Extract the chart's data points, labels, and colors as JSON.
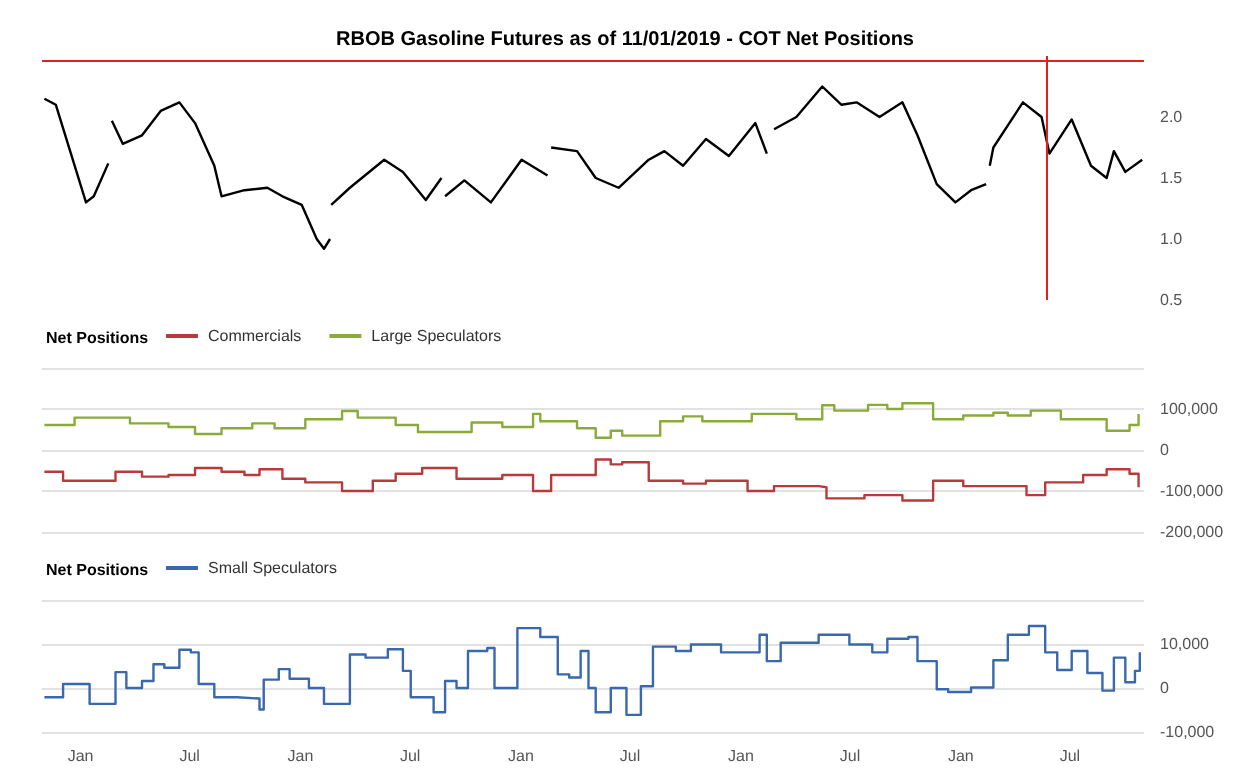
{
  "chart_data": [
    {
      "type": "line",
      "title": "RBOB Gasoline Futures as of 11/01/2019 - COT Net Positions",
      "xlim": [
        "2014-10-29",
        "2019-11-01"
      ],
      "ylim": [
        0.5,
        2.5
      ],
      "yticks": [
        0.5,
        {
          "value": 1,
          "label": "1.0"
        },
        1.5,
        {
          "value": 2,
          "label": "2.0"
        }
      ],
      "tick_labels": "y",
      "grid": false,
      "legend": false,
      "ref_lines": [
        {
          "axis": "x",
          "value": "2019-05-24",
          "color": "#e02020"
        },
        {
          "axis": "y",
          "value": 2.46,
          "color": "#e02020"
        }
      ],
      "series": [
        {
          "color": "#000000",
          "x": [
            "2014-11-02",
            "2014-11-21",
            "2014-12-16",
            "2015-01-10",
            "2015-01-23",
            "2015-02-16",
            "2015-02-19",
            "2015-02-22",
            "2015-03-12",
            "2015-04-13",
            "2015-05-14",
            "2015-06-14",
            "2015-07-10",
            "2015-08-11",
            "2015-08-23",
            "2015-09-30",
            "2015-11-07",
            "2015-12-02",
            "2016-01-03",
            "2016-01-28",
            "2016-02-09",
            "2016-02-19",
            "2016-02-20",
            "2016-02-21",
            "2016-03-23",
            "2016-05-19",
            "2016-06-19",
            "2016-07-27",
            "2016-08-22",
            "2016-08-25",
            "2016-08-28",
            "2016-09-29",
            "2016-11-12",
            "2017-01-02",
            "2017-02-14",
            "2017-02-17",
            "2017-02-20",
            "2017-04-04",
            "2017-05-05",
            "2017-06-12",
            "2017-08-01",
            "2017-08-27",
            "2017-09-27",
            "2017-11-04",
            "2017-12-12",
            "2018-01-25",
            "2018-02-13",
            "2018-02-19",
            "2018-02-25",
            "2018-04-03",
            "2018-05-16",
            "2018-06-17",
            "2018-07-12",
            "2018-08-19",
            "2018-09-26",
            "2018-10-21",
            "2018-11-22",
            "2018-12-23",
            "2019-01-18",
            "2019-02-12",
            "2019-02-15",
            "2019-02-18",
            "2019-02-24",
            "2019-04-14",
            "2019-05-15",
            "2019-05-28",
            "2019-07-04",
            "2019-08-05",
            "2019-08-31",
            "2019-09-12",
            "2019-10-01",
            "2019-10-29"
          ],
          "values": [
            2.15,
            2.1,
            1.7,
            1.3,
            1.35,
            1.62,
            null,
            1.97,
            1.78,
            1.85,
            2.05,
            2.12,
            1.95,
            1.6,
            1.35,
            1.4,
            1.42,
            1.35,
            1.28,
            1.0,
            0.92,
            1.0,
            null,
            1.28,
            1.42,
            1.65,
            1.55,
            1.32,
            1.5,
            null,
            1.35,
            1.48,
            1.3,
            1.65,
            1.52,
            null,
            1.75,
            1.72,
            1.5,
            1.42,
            1.65,
            1.72,
            1.6,
            1.82,
            1.68,
            1.95,
            1.7,
            null,
            1.9,
            2.0,
            2.25,
            2.1,
            2.12,
            2.0,
            2.12,
            1.85,
            1.45,
            1.3,
            1.4,
            1.45,
            null,
            1.6,
            1.75,
            2.12,
            2.0,
            1.7,
            1.98,
            1.6,
            1.5,
            1.72,
            1.55,
            1.65
          ]
        }
      ]
    },
    {
      "type": "step",
      "legend_title": "Net Positions",
      "xlim": [
        "2014-10-29",
        "2019-11-01"
      ],
      "ylim": [
        -200000,
        200000
      ],
      "yticks": [
        {
          "value": -200000,
          "label": "-200,000"
        },
        {
          "value": -100000,
          "label": "-100,000"
        },
        0,
        {
          "value": 100000,
          "label": "100,000"
        },
        {
          "value": 200000,
          "label": null
        }
      ],
      "tick_labels": "y",
      "grid": "y",
      "legend": "top left",
      "series": [
        {
          "name": "Commercials",
          "color": "#b83a3a",
          "x": [
            "2014-11-02",
            "2014-12-03",
            "2015-01-23",
            "2015-02-28",
            "2015-04-13",
            "2015-05-27",
            "2015-07-10",
            "2015-08-23",
            "2015-09-30",
            "2015-10-25",
            "2015-12-02",
            "2016-01-09",
            "2016-03-10",
            "2016-04-30",
            "2016-06-07",
            "2016-07-21",
            "2016-08-15",
            "2016-09-16",
            "2016-12-01",
            "2017-01-21",
            "2017-02-20",
            "2017-04-04",
            "2017-05-05",
            "2017-05-30",
            "2017-06-18",
            "2017-08-01",
            "2017-09-27",
            "2017-11-04",
            "2018-01-12",
            "2018-02-25",
            "2018-05-10",
            "2018-05-23",
            "2018-07-25",
            "2018-09-26",
            "2018-11-16",
            "2019-01-05",
            "2019-03-07",
            "2019-04-20",
            "2019-05-21",
            "2019-07-23",
            "2019-08-31",
            "2019-10-08",
            "2019-10-23"
          ],
          "values": [
            -53000,
            -75000,
            -75000,
            -53000,
            -65000,
            -61000,
            -44000,
            -53000,
            -61000,
            -47000,
            -70000,
            -79000,
            -100000,
            -75000,
            -58000,
            -44000,
            -44000,
            -70000,
            -61000,
            -100000,
            -61000,
            -61000,
            -23000,
            -35000,
            -30000,
            -75000,
            -82000,
            -75000,
            -100000,
            -88000,
            -91000,
            -118000,
            -110000,
            -123000,
            -75000,
            -88000,
            -88000,
            -110000,
            -79000,
            -61000,
            -47000,
            -58000,
            -91000
          ]
        },
        {
          "name": "Large Speculators",
          "color": "#8aab3a",
          "x": [
            "2014-11-02",
            "2014-12-22",
            "2015-02-05",
            "2015-03-24",
            "2015-05-27",
            "2015-07-10",
            "2015-08-23",
            "2015-10-13",
            "2015-11-19",
            "2016-01-09",
            "2016-03-10",
            "2016-04-05",
            "2016-06-07",
            "2016-07-14",
            "2016-10-11",
            "2016-12-01",
            "2017-01-21",
            "2017-02-02",
            "2017-04-04",
            "2017-05-05",
            "2017-05-30",
            "2017-06-18",
            "2017-08-20",
            "2017-09-27",
            "2017-10-29",
            "2018-01-19",
            "2018-04-03",
            "2018-05-16",
            "2018-06-05",
            "2018-07-31",
            "2018-09-01",
            "2018-09-26",
            "2018-11-16",
            "2019-01-05",
            "2019-02-24",
            "2019-03-20",
            "2019-04-27",
            "2019-06-16",
            "2019-08-05",
            "2019-08-31",
            "2019-10-08",
            "2019-10-23"
          ],
          "values": [
            61000,
            79000,
            79000,
            65000,
            56000,
            39000,
            53000,
            65000,
            53000,
            75000,
            95000,
            79000,
            61000,
            44000,
            67000,
            56000,
            88000,
            70000,
            53000,
            30000,
            47000,
            35000,
            70000,
            82000,
            70000,
            88000,
            75000,
            109000,
            96000,
            110000,
            100000,
            114000,
            75000,
            84000,
            91000,
            84000,
            96000,
            75000,
            75000,
            47000,
            61000,
            88000
          ]
        }
      ]
    },
    {
      "type": "step",
      "legend_title": "Net Positions",
      "xlim": [
        "2014-10-29",
        "2019-11-01"
      ],
      "xticks": [
        {
          "value": "2015-01-01",
          "label": "Jan"
        },
        {
          "value": "2015-07-01",
          "label": "Jul"
        },
        {
          "value": "2016-01-01",
          "label": "Jan"
        },
        {
          "value": "2016-07-01",
          "label": "Jul"
        },
        {
          "value": "2017-01-01",
          "label": "Jan"
        },
        {
          "value": "2017-07-01",
          "label": "Jul"
        },
        {
          "value": "2018-01-01",
          "label": "Jan"
        },
        {
          "value": "2018-07-01",
          "label": "Jul"
        },
        {
          "value": "2019-01-01",
          "label": "Jan"
        },
        {
          "value": "2019-07-01",
          "label": "Jul"
        }
      ],
      "ylim": [
        -10000,
        20000
      ],
      "yticks": [
        {
          "value": -10000,
          "label": "-10,000"
        },
        0,
        {
          "value": 10000,
          "label": "10,000"
        },
        {
          "value": 20000,
          "label": null
        }
      ],
      "grid": "y",
      "legend": "top left",
      "series": [
        {
          "name": "Small Speculators",
          "color": "#3a68ad",
          "x": [
            "2014-11-02",
            "2014-12-03",
            "2015-01-16",
            "2015-02-28",
            "2015-03-18",
            "2015-04-13",
            "2015-05-02",
            "2015-05-20",
            "2015-06-14",
            "2015-07-03",
            "2015-07-16",
            "2015-08-11",
            "2015-09-18",
            "2015-10-25",
            "2015-11-01",
            "2015-11-26",
            "2015-12-14",
            "2016-01-15",
            "2016-02-09",
            "2016-03-23",
            "2016-04-18",
            "2016-05-25",
            "2016-06-19",
            "2016-07-02",
            "2016-08-09",
            "2016-08-28",
            "2016-09-16",
            "2016-10-05",
            "2016-11-06",
            "2016-11-18",
            "2016-12-26",
            "2017-02-02",
            "2017-03-03",
            "2017-03-22",
            "2017-04-10",
            "2017-04-23",
            "2017-05-05",
            "2017-05-30",
            "2017-06-25",
            "2017-07-19",
            "2017-08-08",
            "2017-09-15",
            "2017-10-10",
            "2017-11-29",
            "2018-02-01",
            "2018-02-13",
            "2018-03-08",
            "2018-05-10",
            "2018-06-30",
            "2018-08-07",
            "2018-09-01",
            "2018-10-06",
            "2018-10-21",
            "2018-11-22",
            "2018-12-11",
            "2019-01-18",
            "2019-02-24",
            "2019-03-20",
            "2019-04-24",
            "2019-05-21",
            "2019-06-10",
            "2019-07-04",
            "2019-07-30",
            "2019-08-24",
            "2019-09-12",
            "2019-10-01",
            "2019-10-17",
            "2019-10-25"
          ],
          "values": [
            -2100,
            900,
            -3600,
            3600,
            0,
            1600,
            5400,
            4600,
            8700,
            8100,
            900,
            -2100,
            -2400,
            -4900,
            1900,
            4300,
            2100,
            0,
            -3600,
            7600,
            6900,
            8800,
            3900,
            -2100,
            -5500,
            1600,
            0,
            8400,
            9100,
            0,
            13600,
            11600,
            3100,
            2400,
            8400,
            0,
            -5500,
            0,
            -6100,
            400,
            9400,
            8400,
            9900,
            8100,
            12100,
            6100,
            10300,
            12100,
            9900,
            8100,
            11200,
            11600,
            6100,
            -300,
            -900,
            100,
            6300,
            12100,
            14100,
            8100,
            4100,
            8400,
            3400,
            -600,
            6900,
            1300,
            3900,
            8100
          ]
        }
      ]
    }
  ]
}
